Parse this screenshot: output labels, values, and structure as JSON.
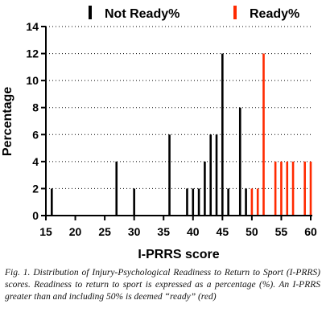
{
  "chart_data": {
    "type": "bar",
    "xlabel": "I-PRRS score",
    "ylabel": "Percentage",
    "xlim": [
      15,
      60
    ],
    "ylim": [
      0,
      14
    ],
    "x_ticks": [
      15,
      20,
      25,
      30,
      35,
      40,
      45,
      50,
      55,
      60
    ],
    "y_ticks": [
      0,
      2,
      4,
      6,
      8,
      10,
      12,
      14
    ],
    "legend_position": "top",
    "series": [
      {
        "name": "Not Ready%",
        "color": "#000000",
        "points": [
          {
            "x": 16,
            "y": 2
          },
          {
            "x": 27,
            "y": 4
          },
          {
            "x": 30,
            "y": 2
          },
          {
            "x": 36,
            "y": 6
          },
          {
            "x": 39,
            "y": 2
          },
          {
            "x": 40,
            "y": 2
          },
          {
            "x": 41,
            "y": 2
          },
          {
            "x": 42,
            "y": 4
          },
          {
            "x": 43,
            "y": 6
          },
          {
            "x": 44,
            "y": 6
          },
          {
            "x": 45,
            "y": 12
          },
          {
            "x": 46,
            "y": 2
          },
          {
            "x": 48,
            "y": 8
          },
          {
            "x": 49,
            "y": 2
          }
        ]
      },
      {
        "name": "Ready%",
        "color": "#ff2a00",
        "points": [
          {
            "x": 50,
            "y": 2
          },
          {
            "x": 51,
            "y": 2
          },
          {
            "x": 52,
            "y": 12
          },
          {
            "x": 54,
            "y": 4
          },
          {
            "x": 55,
            "y": 4
          },
          {
            "x": 56,
            "y": 4
          },
          {
            "x": 57,
            "y": 4
          },
          {
            "x": 59,
            "y": 4
          },
          {
            "x": 60,
            "y": 4
          }
        ]
      }
    ]
  },
  "caption": {
    "label": "Fig. 1.",
    "text": "Distribution of Injury-Psychological Readiness to Return to Sport (I-PRRS) scores. Readiness to return to sport is expressed as a percentage (%). An I-PRRS greater than and including 50% is deemed “ready” (red)"
  }
}
